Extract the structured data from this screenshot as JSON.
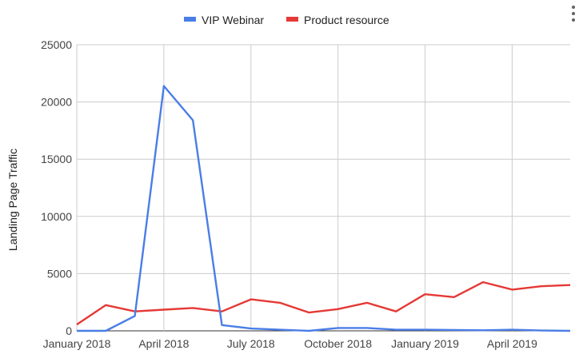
{
  "chart_data": {
    "type": "line",
    "title": "",
    "xlabel": "",
    "ylabel": "Landing Page Traffic",
    "ylim": [
      0,
      25000
    ],
    "yticks": [
      0,
      5000,
      10000,
      15000,
      20000,
      25000
    ],
    "x_tick_labels": [
      {
        "label": "January 2018",
        "index": 0
      },
      {
        "label": "April 2018",
        "index": 3
      },
      {
        "label": "July 2018",
        "index": 6
      },
      {
        "label": "October 2018",
        "index": 9
      },
      {
        "label": "January 2019",
        "index": 12
      },
      {
        "label": "April 2019",
        "index": 15
      }
    ],
    "x": [
      "2018-01",
      "2018-02",
      "2018-03",
      "2018-04",
      "2018-05",
      "2018-06",
      "2018-07",
      "2018-08",
      "2018-09",
      "2018-10",
      "2018-11",
      "2018-12",
      "2019-01",
      "2019-02",
      "2019-03",
      "2019-04",
      "2019-05",
      "2019-06"
    ],
    "series": [
      {
        "name": "VIP Webinar",
        "color": "#4a7ee6",
        "values": [
          0,
          0,
          1300,
          21400,
          18400,
          500,
          200,
          100,
          0,
          250,
          250,
          100,
          100,
          80,
          50,
          100,
          30,
          0
        ]
      },
      {
        "name": "Product resource",
        "color": "#e53935",
        "values": [
          550,
          2250,
          1700,
          1850,
          2000,
          1700,
          2750,
          2450,
          1600,
          1900,
          2450,
          1700,
          3200,
          2950,
          4250,
          3600,
          3900,
          4000
        ]
      }
    ],
    "grid": true,
    "legend": "top-center"
  },
  "menu": {
    "icon": "more-vert-icon"
  }
}
